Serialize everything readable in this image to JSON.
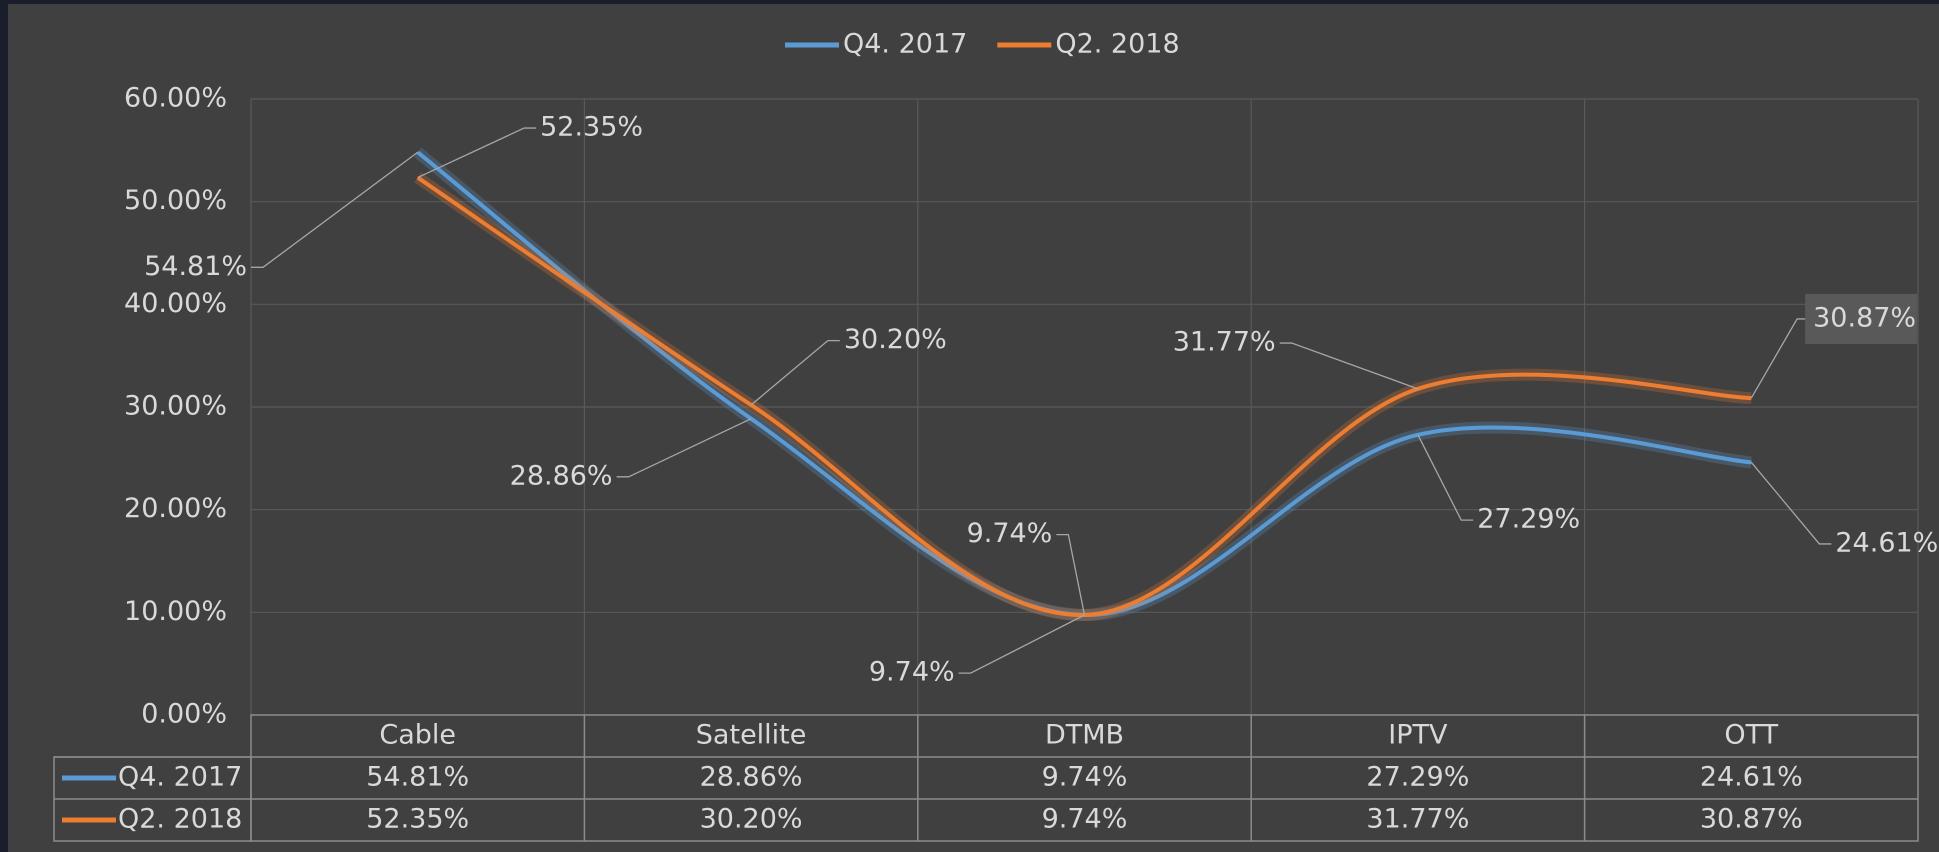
{
  "chart_data": {
    "type": "line",
    "categories": [
      "Cable",
      "Satellite",
      "DTMB",
      "IPTV",
      "OTT"
    ],
    "series": [
      {
        "name": "Q4. 2017",
        "color": "#5b9bd5",
        "values": [
          54.81,
          28.86,
          9.74,
          27.29,
          24.61
        ],
        "value_labels": [
          "54.81%",
          "28.86%",
          "9.74%",
          "27.29%",
          "24.61%"
        ]
      },
      {
        "name": "Q2. 2018",
        "color": "#ed7d31",
        "values": [
          52.35,
          30.2,
          9.74,
          31.77,
          30.87
        ],
        "value_labels": [
          "52.35%",
          "30.20%",
          "9.74%",
          "31.77%",
          "30.87%"
        ]
      }
    ],
    "ylim": [
      0,
      60
    ],
    "yticks": [
      {
        "value": 0,
        "label": "0.00%"
      },
      {
        "value": 10,
        "label": "10.00%"
      },
      {
        "value": 20,
        "label": "20.00%"
      },
      {
        "value": 30,
        "label": "30.00%"
      },
      {
        "value": 40,
        "label": "40.00%"
      },
      {
        "value": 50,
        "label": "50.00%"
      },
      {
        "value": 60,
        "label": "60.00%"
      }
    ],
    "grid": true,
    "legend": "top",
    "smooth": true
  }
}
